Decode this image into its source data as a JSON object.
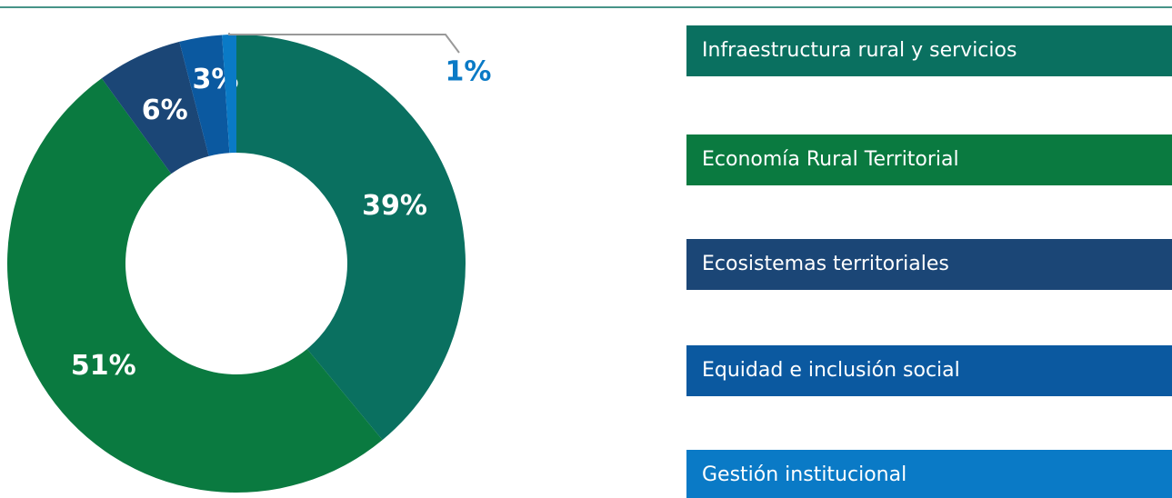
{
  "chart_data": {
    "type": "donut",
    "categories": [
      "Infraestructura rural y servicios",
      "Economía Rural Territorial",
      "Ecosistemas territoriales",
      "Equidad e inclusión social",
      "Gestión institucional"
    ],
    "values": [
      39,
      51,
      6,
      3,
      1
    ],
    "value_labels": [
      "39%",
      "51%",
      "6%",
      "3%",
      "1%"
    ],
    "colors": [
      "#0a7060",
      "#0a7a40",
      "#1b4676",
      "#0b59a0",
      "#0a7ac6"
    ]
  }
}
